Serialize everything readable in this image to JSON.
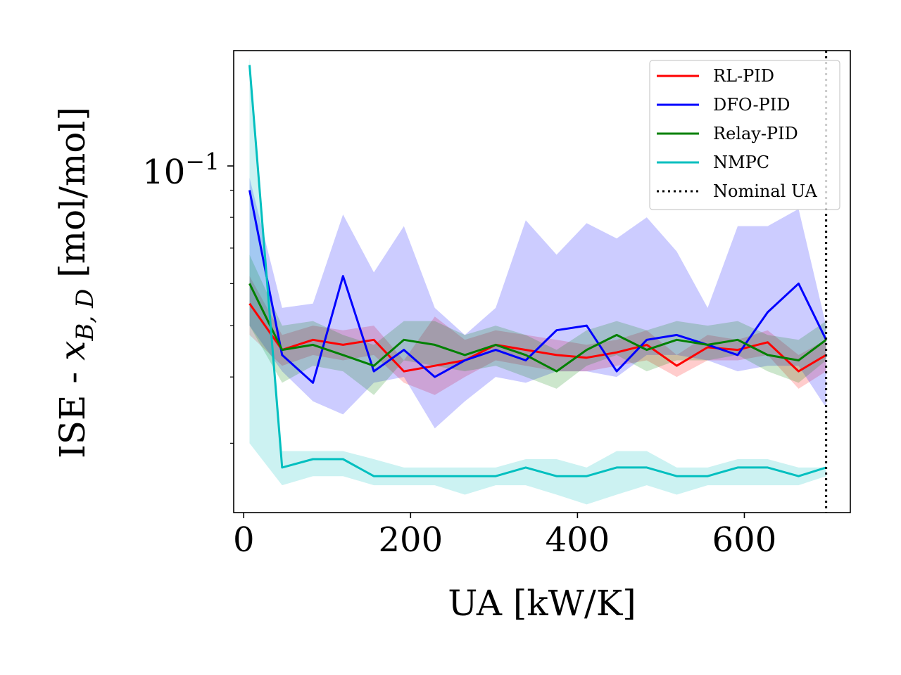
{
  "chart_data": {
    "type": "line",
    "xlabel": "UA [kW/K]",
    "ylabel": {
      "prefix": "ISE - ",
      "var": "x",
      "sub": "B, D",
      "suffix": " [mol/mol]"
    },
    "xlim": [
      -12,
      727
    ],
    "ylim": [
      0.0222,
      0.165
    ],
    "yscale": "log",
    "grid": false,
    "legend_position": "top-right",
    "xticks": [
      0,
      200,
      400,
      600
    ],
    "yticks_major": [
      {
        "value": 0.1,
        "base": "10",
        "exp": "−1"
      }
    ],
    "yticks_minor": [
      0.03,
      0.04,
      0.05,
      0.06,
      0.07,
      0.08,
      0.09,
      0.2
    ],
    "nominal_ua": {
      "name": "Nominal UA",
      "x": 698
    },
    "x": [
      7,
      46,
      83,
      119,
      156,
      192,
      229,
      265,
      302,
      338,
      375,
      411,
      447,
      483,
      519,
      556,
      592,
      628,
      665,
      698
    ],
    "series": [
      {
        "name": "RL-PID",
        "color": "#ff0000",
        "values": [
          0.055,
          0.045,
          0.047,
          0.046,
          0.047,
          0.041,
          0.042,
          0.043,
          0.046,
          0.045,
          0.044,
          0.0435,
          0.0445,
          0.046,
          0.042,
          0.0455,
          0.045,
          0.0465,
          0.041,
          0.044
        ],
        "lower": [
          0.048,
          0.042,
          0.044,
          0.043,
          0.044,
          0.039,
          0.037,
          0.04,
          0.043,
          0.042,
          0.041,
          0.041,
          0.042,
          0.043,
          0.04,
          0.043,
          0.043,
          0.044,
          0.038,
          0.041
        ],
        "upper": [
          0.062,
          0.048,
          0.05,
          0.049,
          0.05,
          0.043,
          0.052,
          0.047,
          0.049,
          0.048,
          0.047,
          0.046,
          0.047,
          0.049,
          0.044,
          0.048,
          0.047,
          0.049,
          0.044,
          0.047
        ]
      },
      {
        "name": "DFO-PID",
        "color": "#0000ff",
        "values": [
          0.09,
          0.044,
          0.039,
          0.062,
          0.041,
          0.045,
          0.04,
          0.043,
          0.045,
          0.043,
          0.049,
          0.05,
          0.041,
          0.047,
          0.048,
          0.046,
          0.044,
          0.053,
          0.06,
          0.047
        ],
        "lower": [
          0.05,
          0.041,
          0.036,
          0.034,
          0.039,
          0.04,
          0.032,
          0.036,
          0.04,
          0.039,
          0.041,
          0.041,
          0.04,
          0.044,
          0.044,
          0.043,
          0.041,
          0.042,
          0.042,
          0.035
        ],
        "upper": [
          0.095,
          0.054,
          0.055,
          0.081,
          0.063,
          0.077,
          0.054,
          0.048,
          0.054,
          0.079,
          0.068,
          0.078,
          0.073,
          0.08,
          0.069,
          0.054,
          0.077,
          0.077,
          0.083,
          0.05
        ]
      },
      {
        "name": "Relay-PID",
        "color": "#008000",
        "values": [
          0.06,
          0.045,
          0.046,
          0.044,
          0.042,
          0.047,
          0.046,
          0.044,
          0.046,
          0.044,
          0.041,
          0.045,
          0.048,
          0.045,
          0.047,
          0.046,
          0.047,
          0.044,
          0.043,
          0.047
        ],
        "lower": [
          0.05,
          0.039,
          0.042,
          0.041,
          0.037,
          0.043,
          0.042,
          0.041,
          0.042,
          0.04,
          0.038,
          0.042,
          0.044,
          0.041,
          0.043,
          0.043,
          0.044,
          0.041,
          0.039,
          0.043
        ],
        "upper": [
          0.068,
          0.05,
          0.051,
          0.048,
          0.046,
          0.051,
          0.051,
          0.048,
          0.05,
          0.048,
          0.045,
          0.049,
          0.051,
          0.049,
          0.051,
          0.05,
          0.051,
          0.048,
          0.047,
          0.051
        ]
      },
      {
        "name": "NMPC",
        "color": "#00bfbf",
        "values": [
          0.155,
          0.027,
          0.028,
          0.028,
          0.026,
          0.026,
          0.026,
          0.026,
          0.026,
          0.027,
          0.026,
          0.026,
          0.027,
          0.027,
          0.026,
          0.026,
          0.027,
          0.027,
          0.026,
          0.027
        ],
        "lower": [
          0.03,
          0.025,
          0.026,
          0.026,
          0.025,
          0.025,
          0.025,
          0.024,
          0.025,
          0.025,
          0.024,
          0.023,
          0.024,
          0.025,
          0.024,
          0.025,
          0.025,
          0.025,
          0.025,
          0.026
        ],
        "upper": [
          0.16,
          0.029,
          0.029,
          0.029,
          0.028,
          0.027,
          0.027,
          0.027,
          0.027,
          0.028,
          0.028,
          0.027,
          0.029,
          0.029,
          0.027,
          0.027,
          0.028,
          0.028,
          0.027,
          0.027
        ]
      }
    ]
  }
}
